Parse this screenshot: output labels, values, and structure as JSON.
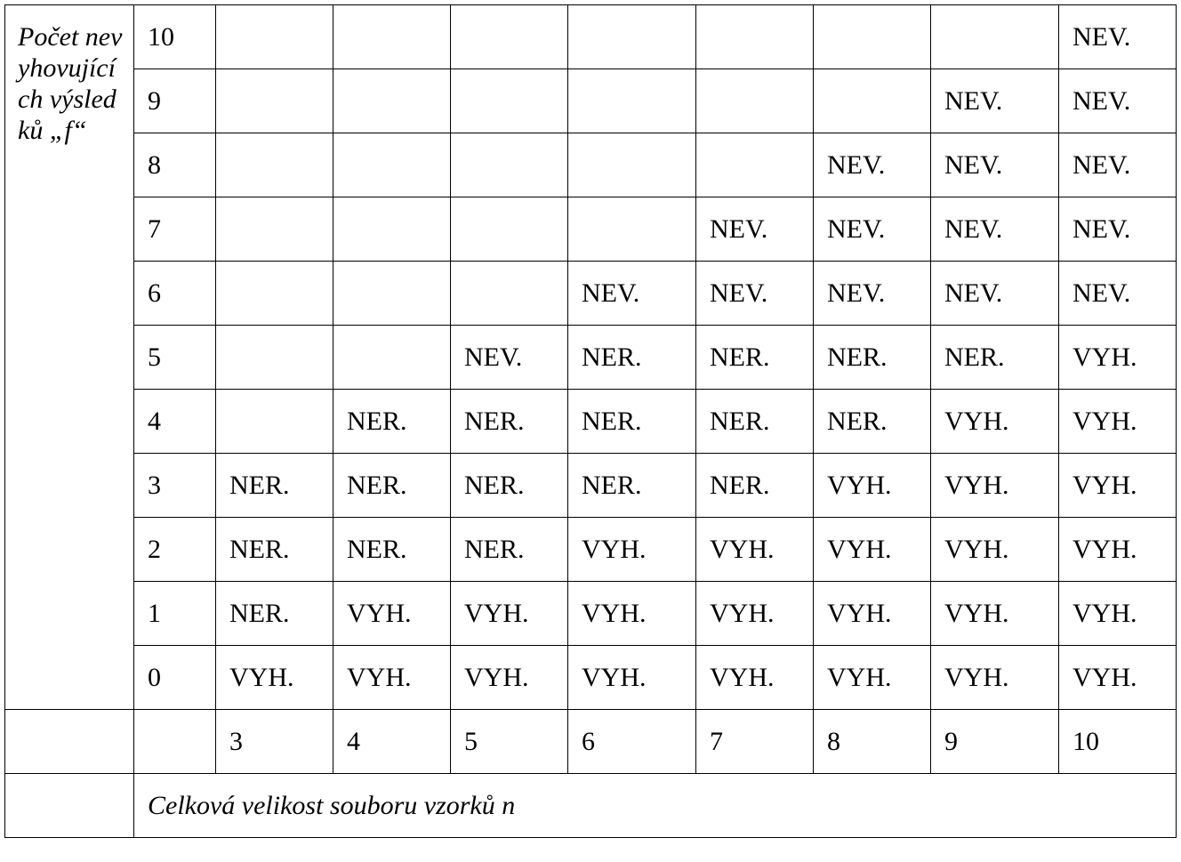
{
  "table": {
    "row_header": "Počet nevyhovujících výsledků „f“",
    "rows": [
      {
        "f": 10,
        "cells": [
          null,
          null,
          null,
          null,
          null,
          null,
          null,
          "NEV."
        ]
      },
      {
        "f": 9,
        "cells": [
          null,
          null,
          null,
          null,
          null,
          null,
          "NEV.",
          "NEV."
        ]
      },
      {
        "f": 8,
        "cells": [
          null,
          null,
          null,
          null,
          null,
          "NEV.",
          "NEV.",
          "NEV."
        ]
      },
      {
        "f": 7,
        "cells": [
          null,
          null,
          null,
          null,
          "NEV.",
          "NEV.",
          "NEV.",
          "NEV."
        ]
      },
      {
        "f": 6,
        "cells": [
          null,
          null,
          null,
          "NEV.",
          "NEV.",
          "NEV.",
          "NEV.",
          "NEV."
        ]
      },
      {
        "f": 5,
        "cells": [
          null,
          null,
          "NEV.",
          "NER.",
          "NER.",
          "NER.",
          "NER.",
          "VYH."
        ]
      },
      {
        "f": 4,
        "cells": [
          null,
          "NER.",
          "NER.",
          "NER.",
          "NER.",
          "NER.",
          "VYH.",
          "VYH."
        ]
      },
      {
        "f": 3,
        "cells": [
          "NER.",
          "NER.",
          "NER.",
          "NER.",
          "NER.",
          "VYH.",
          "VYH.",
          "VYH."
        ]
      },
      {
        "f": 2,
        "cells": [
          "NER.",
          "NER.",
          "NER.",
          "VYH.",
          "VYH.",
          "VYH.",
          "VYH.",
          "VYH."
        ]
      },
      {
        "f": 1,
        "cells": [
          "NER.",
          "VYH.",
          "VYH.",
          "VYH.",
          "VYH.",
          "VYH.",
          "VYH.",
          "VYH."
        ]
      },
      {
        "f": 0,
        "cells": [
          "VYH.",
          "VYH.",
          "VYH.",
          "VYH.",
          "VYH.",
          "VYH.",
          "VYH.",
          "VYH."
        ]
      }
    ],
    "n_values": [
      3,
      4,
      5,
      6,
      7,
      8,
      9,
      10
    ],
    "column_caption": "Celková velikost souboru vzorků n"
  }
}
